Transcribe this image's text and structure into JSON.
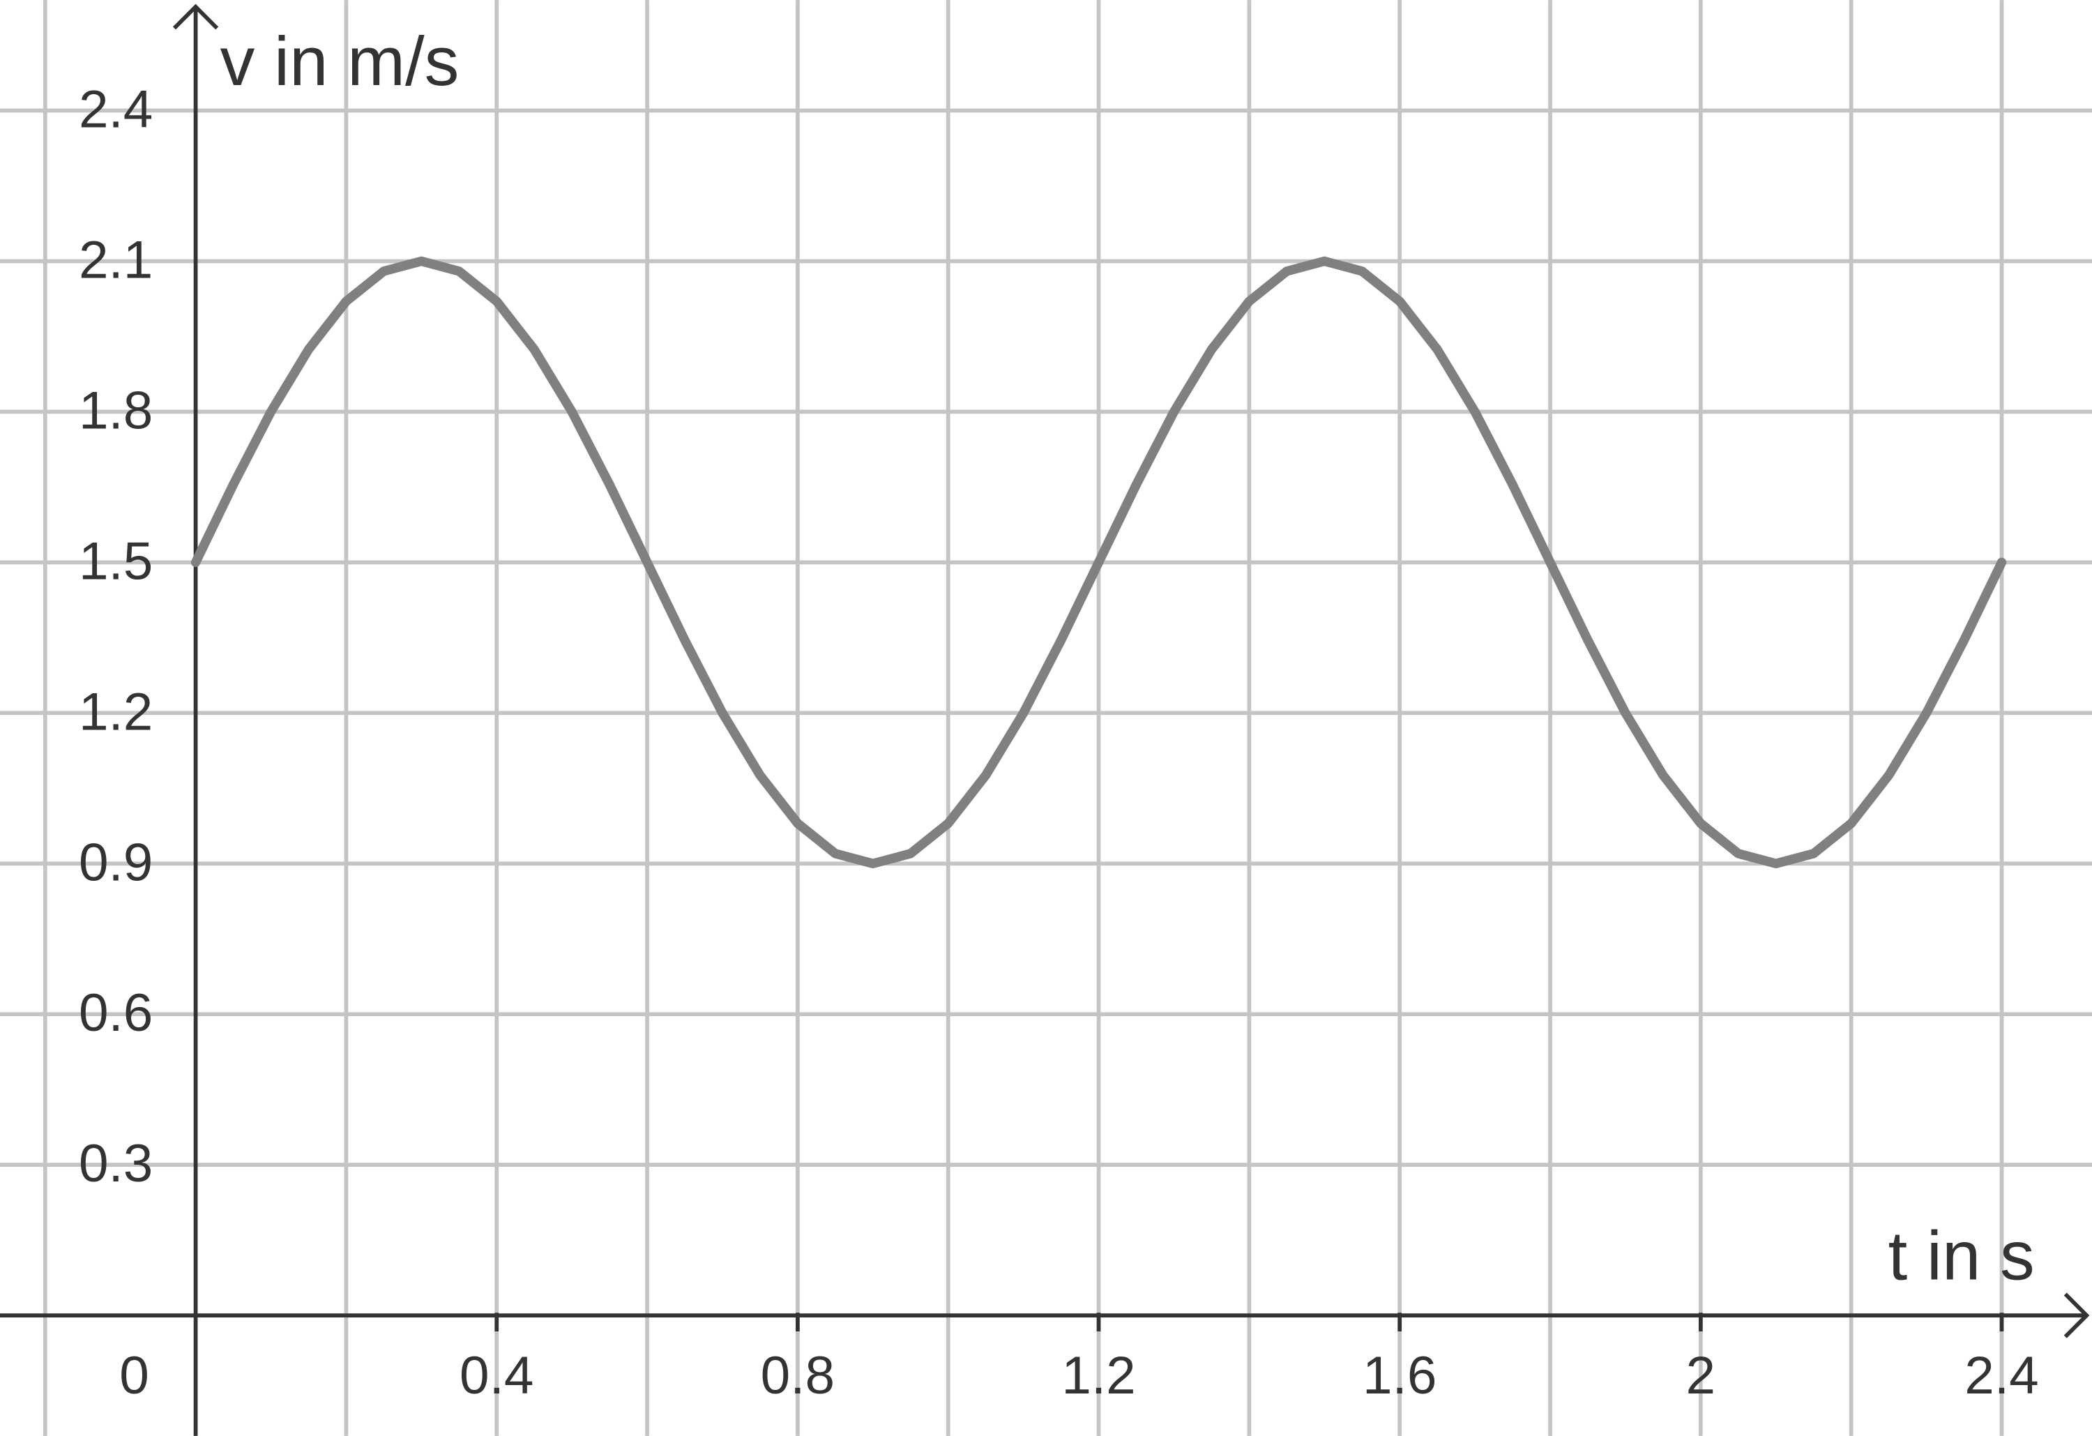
{
  "chart_data": {
    "type": "line",
    "x_label": "t in s",
    "y_label": "v in m/s",
    "x": [
      0,
      0.05,
      0.1,
      0.15,
      0.2,
      0.25,
      0.3,
      0.35,
      0.4,
      0.45,
      0.5,
      0.55,
      0.6,
      0.65,
      0.7,
      0.75,
      0.8,
      0.85,
      0.9,
      0.95,
      1,
      1.05,
      1.1,
      1.15,
      1.2,
      1.25,
      1.3,
      1.35,
      1.4,
      1.45,
      1.5,
      1.55,
      1.6,
      1.65,
      1.7,
      1.75,
      1.8,
      1.85,
      1.9,
      1.95,
      2,
      2.05,
      2.1,
      2.15,
      2.2,
      2.25,
      2.3,
      2.35,
      2.4
    ],
    "series": [
      {
        "color": "#808080",
        "values": [
          1.5,
          1.655,
          1.8,
          1.924,
          2.02,
          2.08,
          2.1,
          2.08,
          2.02,
          1.924,
          1.8,
          1.655,
          1.5,
          1.345,
          1.2,
          1.076,
          0.98,
          0.92,
          0.9,
          0.92,
          0.98,
          1.076,
          1.2,
          1.345,
          1.5,
          1.655,
          1.8,
          1.924,
          2.02,
          2.08,
          2.1,
          2.08,
          2.02,
          1.924,
          1.8,
          1.655,
          1.5,
          1.345,
          1.2,
          1.076,
          0.98,
          0.92,
          0.9,
          0.92,
          0.98,
          1.076,
          1.2,
          1.345,
          1.5
        ]
      }
    ],
    "xlim": [
      -0.26,
      2.52
    ],
    "ylim": [
      -0.24,
      2.62
    ],
    "xticks": [
      0,
      0.4,
      0.8,
      1.2,
      1.6,
      2,
      2.4
    ],
    "x_minor_ticks": [
      -0.2,
      0.2,
      0.6,
      1,
      1.4,
      1.8,
      2.2
    ],
    "yticks": [
      0.3,
      0.6,
      0.9,
      1.2,
      1.5,
      1.8,
      2.1,
      2.4
    ],
    "grid": true
  }
}
